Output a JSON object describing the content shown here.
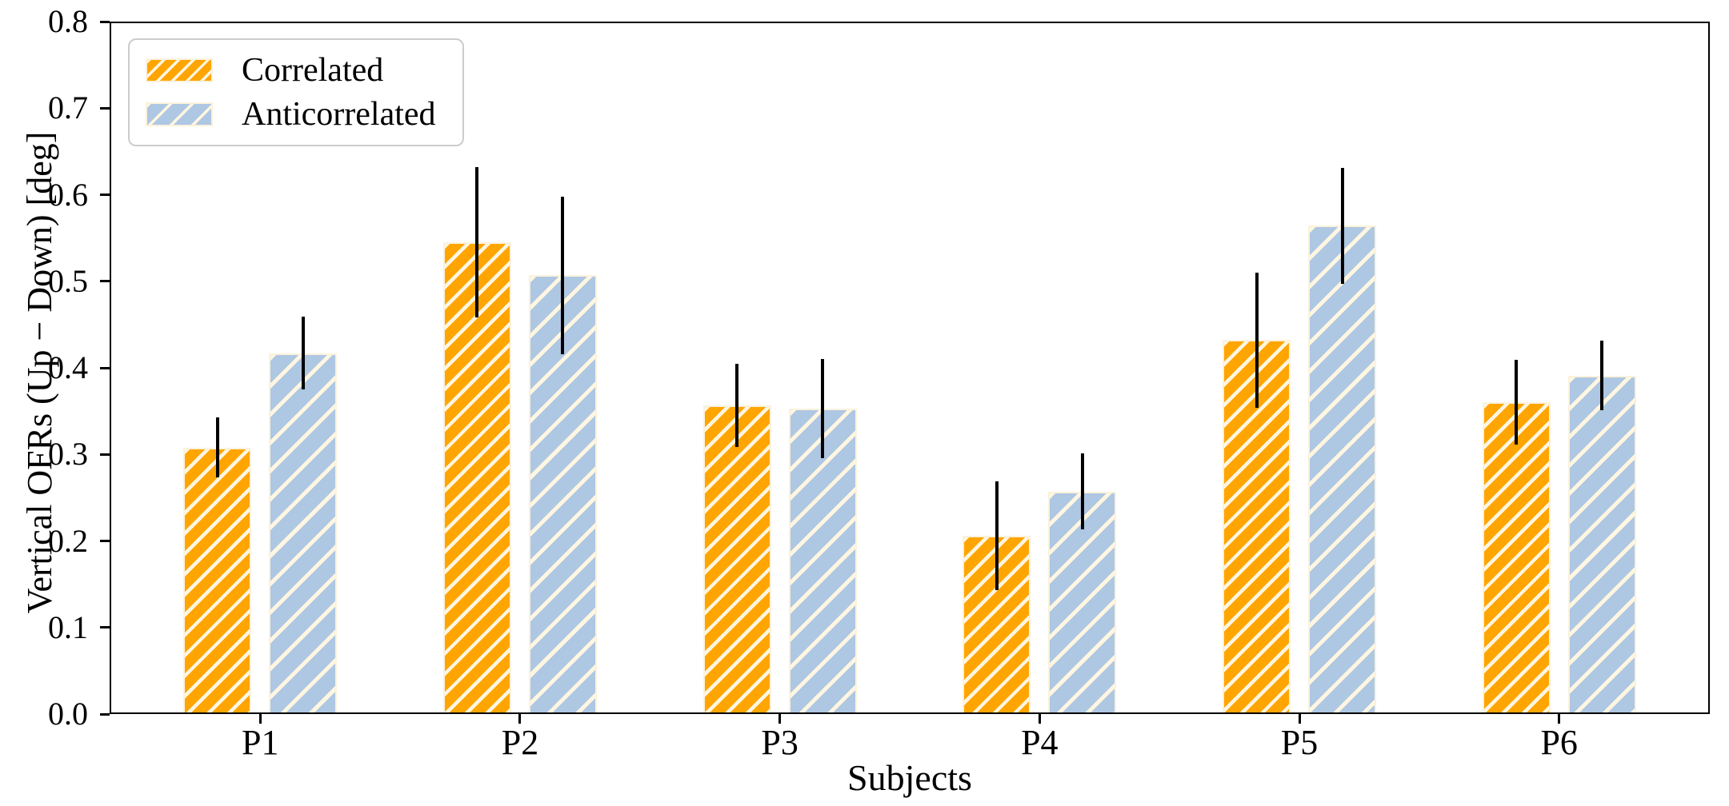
{
  "chart_data": {
    "type": "bar",
    "title": "",
    "xlabel": "Subjects",
    "ylabel": "Vertical OFRs (Up − Down) [deg]",
    "categories": [
      "P1",
      "P2",
      "P3",
      "P4",
      "P5",
      "P6"
    ],
    "series": [
      {
        "name": "Correlated",
        "color": "#FFA502",
        "hatch": "white-diagonal-dense",
        "values": [
          0.308,
          0.545,
          0.357,
          0.206,
          0.432,
          0.36
        ],
        "errors": [
          0.035,
          0.087,
          0.048,
          0.063,
          0.078,
          0.049
        ]
      },
      {
        "name": "Anticorrelated",
        "color": "#AEC7E2",
        "hatch": "white-diagonal-sparse",
        "values": [
          0.417,
          0.507,
          0.353,
          0.257,
          0.564,
          0.391
        ],
        "errors": [
          0.042,
          0.091,
          0.057,
          0.044,
          0.067,
          0.04
        ]
      }
    ],
    "ylim": [
      0.0,
      0.8
    ],
    "y_ticks": [
      "0.0",
      "0.1",
      "0.2",
      "0.3",
      "0.4",
      "0.5",
      "0.6",
      "0.7",
      "0.8"
    ],
    "grid": false,
    "legend_position": "upper-left",
    "error_bar_color": "#000000",
    "hatch_color": "#FFF6E1",
    "bar_edge_color": "#FBF2DC",
    "background_color": "#ffffff"
  }
}
